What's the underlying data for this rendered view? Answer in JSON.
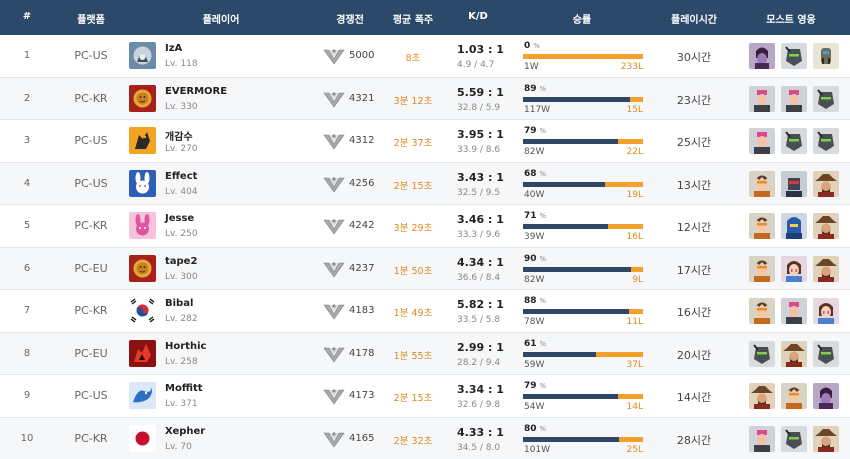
{
  "columns": {
    "rank": "#",
    "platform": "플랫폼",
    "player": "플레이어",
    "competitive": "경쟁전",
    "avg_time": "평균 폭주",
    "kd": "K/D",
    "winrate": "승률",
    "playtime": "플레이시간",
    "heroes": "모스트 영웅"
  },
  "colors": {
    "header_bg": "#2b4a6a",
    "win_bar": "#2d4766",
    "loss_bar": "#f5a02a",
    "accent_orange": "#e08a1e"
  },
  "rows": [
    {
      "rank": "1",
      "platform": "PC-US",
      "name": "IzA",
      "level": "Lv. 118",
      "avatar_icon": "hooded-emblem-icon",
      "score": "5000",
      "avg_time": "8초",
      "kd": "1.03 : 1",
      "kd_detail": "4.9 / 4.7",
      "win_pct": "0",
      "win_fraction": 0.0,
      "wins": "1W",
      "losses": "233L",
      "playtime": "30시간",
      "heroes": [
        "widowmaker-icon",
        "genji-icon",
        "bastion-icon"
      ]
    },
    {
      "rank": "2",
      "platform": "PC-KR",
      "name": "EVERMORE",
      "level": "Lv. 330",
      "avatar_icon": "lion-crest-icon",
      "score": "4321",
      "avg_time": "3분 12초",
      "kd": "5.59 : 1",
      "kd_detail": "32.8 / 5.9",
      "win_pct": "89",
      "win_fraction": 0.89,
      "wins": "117W",
      "losses": "15L",
      "playtime": "23시간",
      "heroes": [
        "zarya-icon",
        "zarya-icon",
        "genji-icon"
      ]
    },
    {
      "rank": "3",
      "platform": "PC-US",
      "name": "개감수",
      "level": "Lv. 270",
      "avatar_icon": "dragon-icon",
      "score": "4312",
      "avg_time": "2분 37초",
      "kd": "3.95 : 1",
      "kd_detail": "33.9 / 8.6",
      "win_pct": "79",
      "win_fraction": 0.79,
      "wins": "82W",
      "losses": "22L",
      "playtime": "25시간",
      "heroes": [
        "zarya-icon",
        "genji-icon",
        "genji-icon"
      ]
    },
    {
      "rank": "4",
      "platform": "PC-US",
      "name": "Effect",
      "level": "Lv. 404",
      "avatar_icon": "bunny-icon",
      "score": "4256",
      "avg_time": "2분 15초",
      "kd": "3.43 : 1",
      "kd_detail": "32.5 / 9.5",
      "win_pct": "68",
      "win_fraction": 0.68,
      "wins": "40W",
      "losses": "19L",
      "playtime": "13시간",
      "heroes": [
        "tracer-icon",
        "soldier-icon",
        "mccree-icon"
      ]
    },
    {
      "rank": "5",
      "platform": "PC-KR",
      "name": "Jesse",
      "level": "Lv. 250",
      "avatar_icon": "pink-bunny-icon",
      "score": "4242",
      "avg_time": "3분 29초",
      "kd": "3.46 : 1",
      "kd_detail": "33.3 / 9.6",
      "win_pct": "71",
      "win_fraction": 0.71,
      "wins": "39W",
      "losses": "16L",
      "playtime": "12시간",
      "heroes": [
        "tracer-icon",
        "pharah-icon",
        "mccree-icon"
      ]
    },
    {
      "rank": "6",
      "platform": "PC-EU",
      "name": "tape2",
      "level": "Lv. 300",
      "avatar_icon": "lion-crest-icon",
      "score": "4237",
      "avg_time": "1분 50초",
      "kd": "4.34 : 1",
      "kd_detail": "36.6 / 8.4",
      "win_pct": "90",
      "win_fraction": 0.9,
      "wins": "82W",
      "losses": "9L",
      "playtime": "17시간",
      "heroes": [
        "tracer-icon",
        "dva-icon",
        "mccree-icon"
      ]
    },
    {
      "rank": "7",
      "platform": "PC-KR",
      "name": "Bibal",
      "level": "Lv. 282",
      "avatar_icon": "korea-flag-icon",
      "score": "4183",
      "avg_time": "1분 49초",
      "kd": "5.82 : 1",
      "kd_detail": "33.5 / 5.8",
      "win_pct": "88",
      "win_fraction": 0.88,
      "wins": "78W",
      "losses": "11L",
      "playtime": "16시간",
      "heroes": [
        "tracer-icon",
        "zarya-icon",
        "dva-icon"
      ]
    },
    {
      "rank": "8",
      "platform": "PC-EU",
      "name": "Horthic",
      "level": "Lv. 258",
      "avatar_icon": "red-dragon-icon",
      "score": "4178",
      "avg_time": "1분 55초",
      "kd": "2.99 : 1",
      "kd_detail": "28.2 / 9.4",
      "win_pct": "61",
      "win_fraction": 0.61,
      "wins": "59W",
      "losses": "37L",
      "playtime": "20시간",
      "heroes": [
        "genji-icon",
        "mccree-icon",
        "genji-icon"
      ]
    },
    {
      "rank": "9",
      "platform": "PC-US",
      "name": "Moffitt",
      "level": "Lv. 371",
      "avatar_icon": "blue-wave-icon",
      "score": "4173",
      "avg_time": "2분 15초",
      "kd": "3.34 : 1",
      "kd_detail": "32.6 / 9.8",
      "win_pct": "79",
      "win_fraction": 0.79,
      "wins": "54W",
      "losses": "14L",
      "playtime": "14시간",
      "heroes": [
        "mccree-icon",
        "tracer-icon",
        "widowmaker-icon"
      ]
    },
    {
      "rank": "10",
      "platform": "PC-KR",
      "name": "Xepher",
      "level": "Lv. 70",
      "avatar_icon": "japan-flag-icon",
      "score": "4165",
      "avg_time": "2분 32초",
      "kd": "4.33 : 1",
      "kd_detail": "34.5 / 8.0",
      "win_pct": "80",
      "win_fraction": 0.8,
      "wins": "101W",
      "losses": "25L",
      "playtime": "28시간",
      "heroes": [
        "zarya-icon",
        "genji-icon",
        "mccree-icon"
      ]
    }
  ]
}
